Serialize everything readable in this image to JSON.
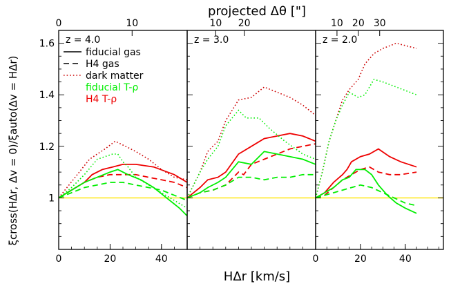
{
  "figure": {
    "top_label": "projected Δθ [\"]",
    "bottom_label": "HΔr [km/s]",
    "y_label": "ξcross(HΔr, Δv = 0)/ξauto(Δv = HΔr)",
    "legend": [
      "fiducial gas",
      "H4 gas",
      "dark matter",
      "fiducial T-ρ",
      "H4 T-ρ"
    ]
  },
  "colors": {
    "fiducial_gas": "#000000",
    "h4_gas": "#000000",
    "dark_matter": "#cc0000",
    "fiducial_trho": "#00ee00",
    "h4_trho": "#ee0000",
    "unity_line": "#ffee55"
  },
  "chart_data": [
    {
      "type": "line",
      "panel_label": "z = 4.0",
      "xlabel": "HΔr [km/s]",
      "ylabel": "ξcross(HΔr, Δv = 0)/ξauto(Δv = HΔr)",
      "xlim": [
        0,
        50
      ],
      "ylim": [
        0.8,
        1.65
      ],
      "x_ticks": [
        0,
        20,
        40
      ],
      "y_ticks": [
        1,
        1.2,
        1.4,
        1.6
      ],
      "top_ticks": [
        0,
        10
      ],
      "unity_line": 1,
      "series": [
        {
          "name": "H4 T-ρ",
          "style": "solid",
          "color": "#ee0000",
          "x": [
            0,
            5,
            10,
            13,
            17,
            21,
            25,
            30,
            37,
            45,
            50
          ],
          "y": [
            1.0,
            1.03,
            1.06,
            1.09,
            1.11,
            1.12,
            1.13,
            1.13,
            1.12,
            1.09,
            1.06
          ]
        },
        {
          "name": "H4 T-ρ",
          "style": "dashed",
          "color": "#ee0000",
          "x": [
            0,
            5,
            10,
            15,
            20,
            25,
            30,
            35,
            40,
            45,
            50
          ],
          "y": [
            1.0,
            1.03,
            1.06,
            1.08,
            1.09,
            1.09,
            1.09,
            1.08,
            1.07,
            1.06,
            1.04
          ]
        },
        {
          "name": "dark matter",
          "style": "dotted",
          "color": "#cc0000",
          "x": [
            0,
            4,
            8,
            12,
            15,
            18,
            22,
            26,
            30,
            35,
            40,
            45,
            50
          ],
          "y": [
            1.0,
            1.05,
            1.1,
            1.15,
            1.17,
            1.19,
            1.22,
            1.2,
            1.18,
            1.15,
            1.11,
            1.08,
            1.07
          ]
        },
        {
          "name": "fiducial T-ρ",
          "style": "solid",
          "color": "#00ee00",
          "x": [
            0,
            5,
            10,
            15,
            20,
            23,
            27,
            32,
            37,
            42,
            47,
            50
          ],
          "y": [
            1.0,
            1.03,
            1.06,
            1.08,
            1.1,
            1.11,
            1.09,
            1.07,
            1.04,
            1.0,
            0.96,
            0.93
          ]
        },
        {
          "name": "fiducial T-ρ",
          "style": "dashed",
          "color": "#00ee00",
          "x": [
            0,
            5,
            10,
            15,
            20,
            25,
            30,
            35,
            40,
            45,
            50
          ],
          "y": [
            1.0,
            1.02,
            1.04,
            1.05,
            1.06,
            1.06,
            1.05,
            1.04,
            1.03,
            1.01,
            0.99
          ]
        },
        {
          "name": "fiducial T-ρ",
          "style": "dotted",
          "color": "#00ee00",
          "x": [
            0,
            5,
            10,
            15,
            18,
            21,
            23,
            25,
            27,
            30,
            35,
            40,
            45,
            50
          ],
          "y": [
            1.0,
            1.04,
            1.09,
            1.15,
            1.16,
            1.17,
            1.17,
            1.14,
            1.12,
            1.08,
            1.05,
            1.02,
            0.99,
            0.96
          ]
        }
      ]
    },
    {
      "type": "line",
      "panel_label": "z = 3.0",
      "xlim": [
        0,
        50
      ],
      "ylim": [
        0.8,
        1.65
      ],
      "top_ticks": [
        10,
        20
      ],
      "unity_line": 1,
      "series": [
        {
          "name": "H4 T-ρ",
          "style": "solid",
          "color": "#ee0000",
          "x": [
            0,
            5,
            8,
            12,
            15,
            20,
            25,
            30,
            35,
            40,
            45,
            50
          ],
          "y": [
            1.0,
            1.04,
            1.07,
            1.08,
            1.1,
            1.17,
            1.2,
            1.23,
            1.24,
            1.25,
            1.24,
            1.22
          ]
        },
        {
          "name": "H4 T-ρ",
          "style": "dashed",
          "color": "#ee0000",
          "x": [
            0,
            5,
            10,
            15,
            20,
            22,
            25,
            30,
            35,
            40,
            45,
            50
          ],
          "y": [
            1.0,
            1.02,
            1.03,
            1.05,
            1.1,
            1.09,
            1.13,
            1.15,
            1.17,
            1.19,
            1.2,
            1.21
          ]
        },
        {
          "name": "fiducial gas",
          "style": "dashed",
          "color": "#00ee00",
          "x": [
            0,
            5,
            10,
            15,
            20,
            25,
            30,
            35,
            40,
            45,
            50
          ],
          "y": [
            1.0,
            1.02,
            1.03,
            1.05,
            1.08,
            1.08,
            1.07,
            1.08,
            1.08,
            1.09,
            1.09
          ]
        },
        {
          "name": "fiducial gas",
          "style": "solid",
          "color": "#00ee00",
          "x": [
            0,
            5,
            8,
            12,
            15,
            20,
            25,
            30,
            35,
            40,
            45,
            50
          ],
          "y": [
            1.0,
            1.02,
            1.04,
            1.06,
            1.08,
            1.14,
            1.13,
            1.18,
            1.17,
            1.16,
            1.15,
            1.13
          ]
        },
        {
          "name": "dark matter",
          "style": "dotted",
          "color": "#cc0000",
          "x": [
            0,
            5,
            8,
            12,
            15,
            20,
            25,
            30,
            35,
            40,
            45,
            50
          ],
          "y": [
            1.0,
            1.1,
            1.18,
            1.22,
            1.3,
            1.38,
            1.39,
            1.43,
            1.41,
            1.39,
            1.36,
            1.32
          ]
        },
        {
          "name": "fiducial T-ρ",
          "style": "dotted",
          "color": "#00ee00",
          "x": [
            0,
            5,
            8,
            12,
            15,
            20,
            23,
            28,
            32,
            38,
            45,
            50
          ],
          "y": [
            1.0,
            1.1,
            1.15,
            1.2,
            1.28,
            1.34,
            1.31,
            1.31,
            1.27,
            1.22,
            1.17,
            1.15
          ]
        }
      ]
    },
    {
      "type": "line",
      "panel_label": "z = 2.0",
      "xlim": [
        0,
        57
      ],
      "ylim": [
        0.8,
        1.65
      ],
      "x_ticks": [
        0,
        20,
        40
      ],
      "top_ticks": [
        10,
        20,
        30
      ],
      "unity_line": 1,
      "series": [
        {
          "name": "H4 T-ρ",
          "style": "solid",
          "color": "#ee0000",
          "x": [
            0,
            4,
            8,
            12,
            14,
            16,
            20,
            24,
            28,
            33,
            38,
            45
          ],
          "y": [
            1.0,
            1.02,
            1.06,
            1.09,
            1.11,
            1.14,
            1.16,
            1.17,
            1.19,
            1.16,
            1.14,
            1.12
          ]
        },
        {
          "name": "H4 T-ρ",
          "style": "dashed",
          "color": "#ee0000",
          "x": [
            0,
            4,
            8,
            12,
            16,
            20,
            24,
            28,
            33,
            38,
            45
          ],
          "y": [
            1.0,
            1.01,
            1.04,
            1.07,
            1.09,
            1.11,
            1.12,
            1.1,
            1.09,
            1.09,
            1.1
          ]
        },
        {
          "name": "fiducial T-ρ",
          "style": "solid",
          "color": "#00ee00",
          "x": [
            0,
            4,
            8,
            12,
            15,
            18,
            22,
            25,
            28,
            32,
            36,
            40,
            45
          ],
          "y": [
            1.0,
            1.02,
            1.04,
            1.07,
            1.08,
            1.11,
            1.11,
            1.09,
            1.05,
            1.01,
            0.98,
            0.96,
            0.94
          ]
        },
        {
          "name": "fiducial T-ρ",
          "style": "dashed",
          "color": "#00ee00",
          "x": [
            0,
            4,
            8,
            12,
            16,
            20,
            25,
            30,
            35,
            40,
            45
          ],
          "y": [
            1.0,
            1.01,
            1.02,
            1.03,
            1.04,
            1.05,
            1.04,
            1.02,
            1.0,
            0.98,
            0.97
          ]
        },
        {
          "name": "dark matter",
          "style": "dotted",
          "color": "#cc0000",
          "x": [
            0,
            3,
            6,
            9,
            12,
            15,
            19,
            22,
            26,
            30,
            36,
            45
          ],
          "y": [
            1.0,
            1.1,
            1.22,
            1.3,
            1.38,
            1.42,
            1.46,
            1.52,
            1.56,
            1.58,
            1.6,
            1.58
          ]
        },
        {
          "name": "fiducial T-ρ",
          "style": "dotted",
          "color": "#00ee00",
          "x": [
            0,
            3,
            6,
            9,
            12,
            15,
            19,
            22,
            26,
            30,
            36,
            45
          ],
          "y": [
            1.0,
            1.1,
            1.22,
            1.3,
            1.36,
            1.41,
            1.39,
            1.4,
            1.46,
            1.45,
            1.43,
            1.4
          ]
        }
      ]
    }
  ]
}
